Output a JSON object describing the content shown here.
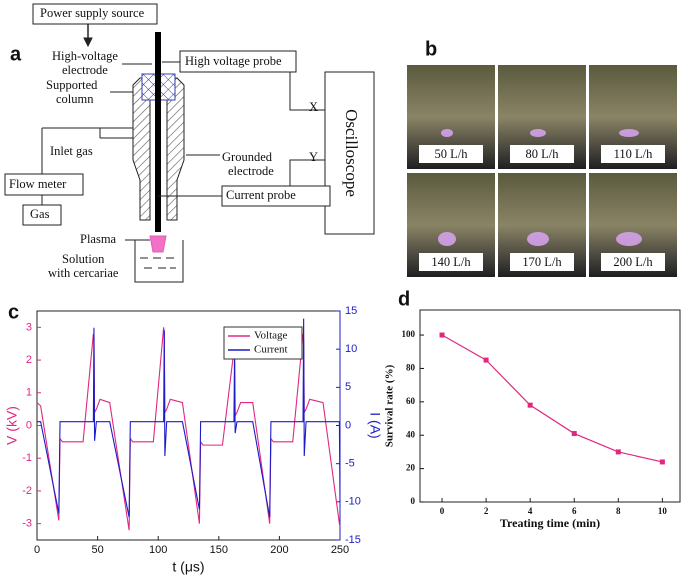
{
  "panels": [
    "a",
    "b",
    "c",
    "d"
  ],
  "diagram": {
    "power_supply": "Power supply source",
    "high_voltage_electrode": [
      "High-voltage",
      "electrode"
    ],
    "supported_column": [
      "Supported",
      "column"
    ],
    "high_voltage_probe": "High voltage probe",
    "oscilloscope": "Oscilloscope",
    "x_port": "X",
    "y_port": "Y",
    "inlet_gas": "Inlet gas",
    "grounded_electrode": [
      "Grounded",
      "electrode"
    ],
    "flow_meter": "Flow meter",
    "current_probe": "Current probe",
    "gas": "Gas",
    "plasma": "Plasma",
    "solution": [
      "Solution",
      "with cercariae"
    ]
  },
  "photos": [
    "50 L/h",
    "80 L/h",
    "110 L/h",
    "140 L/h",
    "170 L/h",
    "200 L/h"
  ],
  "chart_data": [
    {
      "type": "line",
      "xlabel": "t (μs)",
      "ylabel": "V (kV)",
      "y2label": "I (A)",
      "xlim": [
        0,
        250
      ],
      "xticks": [
        0,
        50,
        100,
        150,
        200,
        250
      ],
      "ylim": [
        -3.5,
        3.5
      ],
      "yticks": [
        -3,
        -2,
        -1,
        0,
        1,
        2,
        3
      ],
      "y2lim": [
        -15,
        15
      ],
      "y2ticks": [
        -15,
        -10,
        -5,
        0,
        5,
        10,
        15
      ],
      "axis_colored": true,
      "legend": "upper right",
      "markers": false,
      "x": [
        0,
        3,
        18,
        19,
        21,
        38,
        46.5,
        47,
        47.5,
        49,
        52,
        60,
        76,
        77,
        79,
        96,
        104.5,
        105,
        105.5,
        107,
        110,
        120,
        134,
        135,
        137,
        153,
        162.5,
        163,
        163.5,
        165,
        168,
        178,
        192,
        193,
        195,
        211,
        219.5,
        220,
        220.5,
        222,
        225,
        236,
        249.5,
        250
      ],
      "series": [
        {
          "name": "Voltage",
          "color": "#e0287f",
          "values": [
            0.7,
            0.6,
            -2.9,
            -0.4,
            -0.5,
            -0.5,
            2.8,
            2.6,
            0.4,
            0.5,
            0.8,
            0.7,
            -3.2,
            -0.4,
            -0.5,
            -0.5,
            3.0,
            2.8,
            0.4,
            0.5,
            0.8,
            0.7,
            -3.0,
            -0.5,
            -0.6,
            -0.6,
            2.3,
            2.1,
            0.3,
            0.4,
            0.7,
            0.7,
            -3.0,
            -0.4,
            -0.5,
            -0.5,
            2.8,
            2.6,
            0.4,
            0.5,
            0.8,
            0.7,
            -3.0,
            -3.1
          ]
        },
        {
          "name": "Current",
          "color": "#1c1cc8",
          "axis": "y2",
          "values": [
            0.5,
            0.5,
            -11.5,
            0.5,
            0.5,
            0.5,
            0.5,
            12.8,
            -2,
            0.5,
            0.5,
            0.5,
            -12,
            0.5,
            0.5,
            0.5,
            0.5,
            12.5,
            -4,
            0.5,
            0.5,
            0.5,
            -11,
            0.5,
            0.5,
            0.5,
            0.5,
            10,
            -1,
            0.5,
            0.5,
            0.5,
            -12,
            0.5,
            0.5,
            0.5,
            0.5,
            14,
            -4,
            0.5,
            0.5,
            0.5,
            0.5,
            -10
          ]
        }
      ]
    },
    {
      "type": "line",
      "xlabel": "Treating time (min)",
      "ylabel": "Survival rate (%)",
      "xlim": [
        -1,
        10.8
      ],
      "xticks": [
        0,
        2,
        4,
        6,
        8,
        10
      ],
      "ylim": [
        0,
        115
      ],
      "yticks": [
        0,
        20,
        40,
        60,
        80,
        100
      ],
      "markers": true,
      "color": "#e0287f",
      "x": [
        0,
        2,
        4,
        6,
        8,
        10
      ],
      "values": [
        100,
        85,
        58,
        41,
        30,
        24
      ]
    }
  ]
}
